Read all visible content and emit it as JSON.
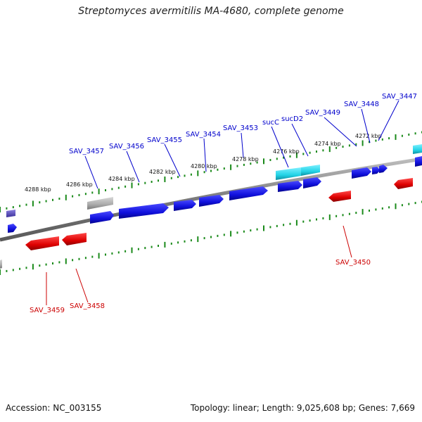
{
  "title": "Streptomyces avermitilis MA-4680, complete genome",
  "footer": {
    "accession": "Accession: NC_003155",
    "summary": "Topology: linear; Length: 9,025,608 bp; Genes: 7,669"
  },
  "scale_labels": [
    "4288 kbp",
    "4286 kbp",
    "4284 kbp",
    "4282 kbp",
    "4280 kbp",
    "4278 kbp",
    "4276 kbp",
    "4274 kbp",
    "4272 kbp"
  ],
  "forward_gene_labels": [
    "SAV_3457",
    "SAV_3456",
    "SAV_3455",
    "SAV_3454",
    "SAV_3453",
    "sucC",
    "sucD2",
    "SAV_3449",
    "SAV_3448",
    "SAV_3447"
  ],
  "reverse_gene_labels": [
    "SAV_3459",
    "SAV_3458",
    "SAV_3450"
  ],
  "colors": {
    "forward_gene": "#1010dd",
    "reverse_gene": "#dd0000",
    "highlight_gene": "#22d3e6",
    "unknown_gene": "#aaaaaa",
    "backbone": "#888888",
    "tick": "#1a8a1a",
    "forward_label": "#0000cc",
    "reverse_label": "#cc0000"
  }
}
